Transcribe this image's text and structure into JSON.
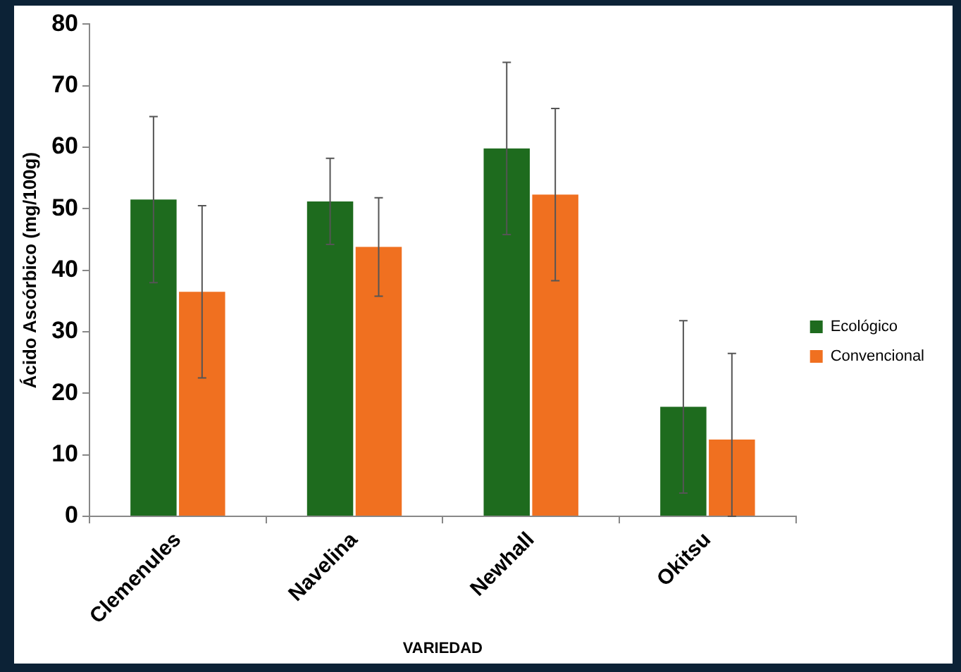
{
  "chart_data": {
    "type": "bar",
    "xlabel": "VARIEDAD",
    "ylabel": "Ácido Ascórbico (mg/100g)",
    "categories": [
      "Clemenules",
      "Navelina",
      "Newhall",
      "Okitsu"
    ],
    "series": [
      {
        "name": "Ecológico",
        "color": "#1e6b1e",
        "values": [
          51.5,
          51.2,
          59.8,
          17.8
        ],
        "errors": [
          13.5,
          7,
          14,
          14
        ]
      },
      {
        "name": "Convencional",
        "color": "#f07020",
        "values": [
          36.5,
          43.8,
          52.3,
          12.5
        ],
        "errors": [
          14,
          8,
          14,
          [
            0,
            26.5
          ]
        ]
      }
    ],
    "ylim": [
      0,
      80
    ],
    "yticks": [
      0,
      10,
      20,
      30,
      40,
      50,
      60,
      70,
      80
    ],
    "grid": false,
    "legend": "right"
  }
}
